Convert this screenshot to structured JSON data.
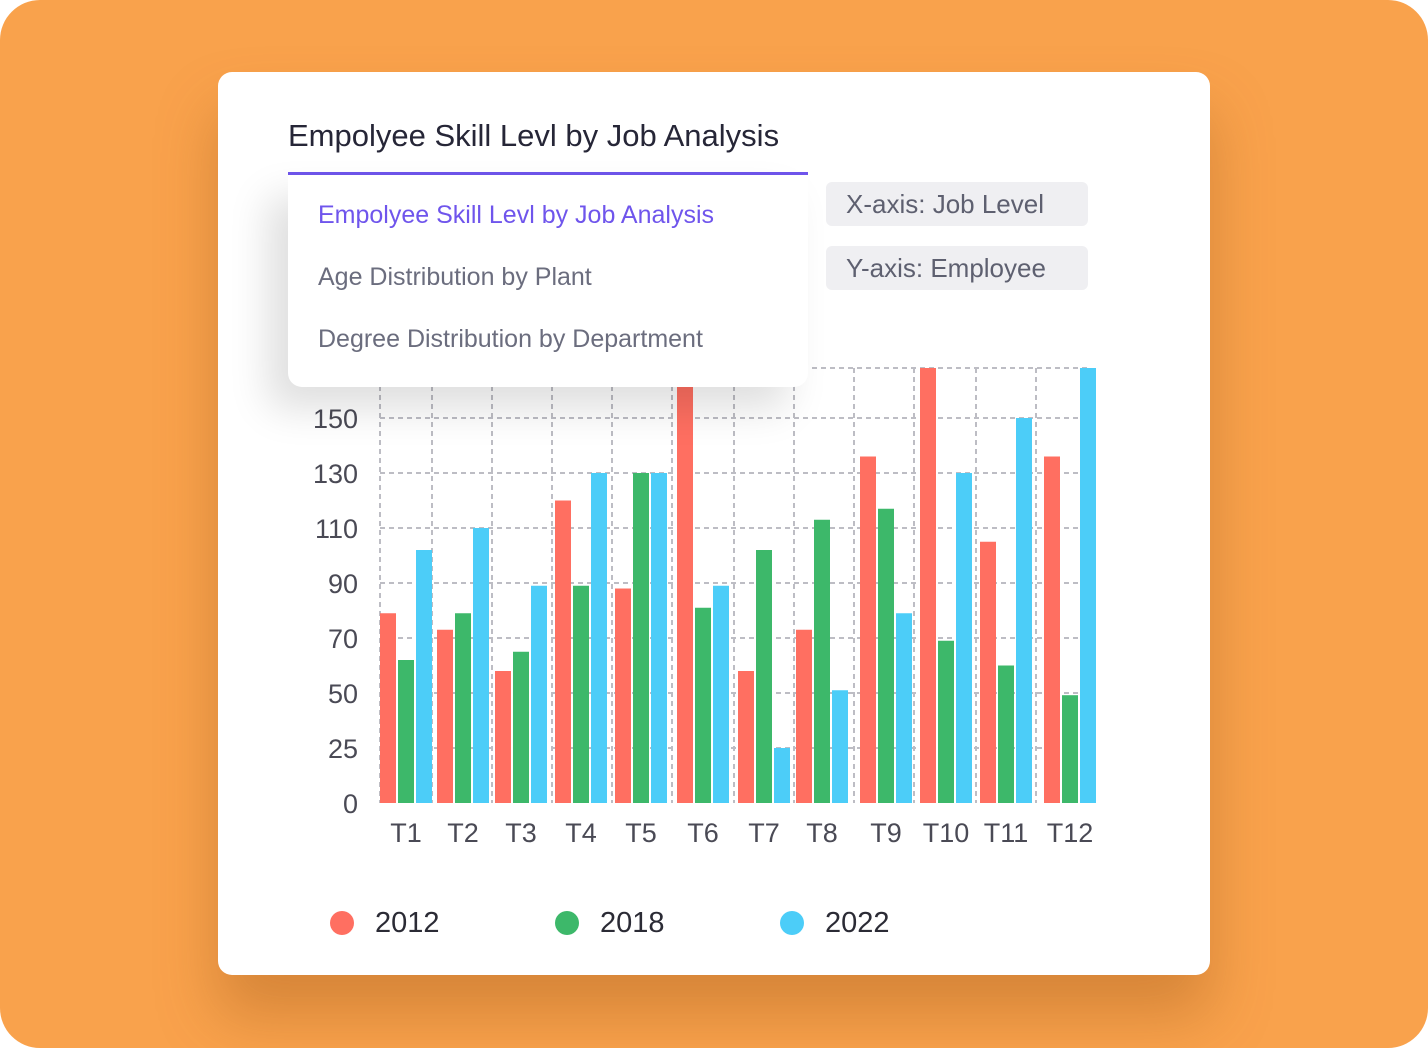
{
  "header": {
    "title": "Empolyee Skill Levl by Job Analysis"
  },
  "dropdown": {
    "items": [
      {
        "label": "Empolyee Skill Levl by Job Analysis",
        "active": true
      },
      {
        "label": "Age Distribution by Plant",
        "active": false
      },
      {
        "label": "Degree Distribution by Department",
        "active": false
      }
    ]
  },
  "axis_chips": {
    "x": {
      "key": "X-axis:",
      "value": "Job Level"
    },
    "y": {
      "key": "Y-axis:",
      "value": "Employee"
    }
  },
  "colors": {
    "accent": "#6F55EC",
    "background": "#F9A24C",
    "s2012": "#FF6F61",
    "s2018": "#3DB86A",
    "s2022": "#4CCDF8"
  },
  "chart_data": {
    "type": "bar",
    "title": "Empolyee Skill Levl by Job Analysis",
    "xlabel": "Job Level",
    "ylabel": "Employee",
    "categories": [
      "T1",
      "T2",
      "T3",
      "T4",
      "T5",
      "T6",
      "T7",
      "T8",
      "T9",
      "T10",
      "T11",
      "T12"
    ],
    "yticks": [
      0,
      25,
      50,
      70,
      90,
      110,
      130,
      150
    ],
    "ylim": [
      0,
      160
    ],
    "grid": true,
    "legend_position": "bottom",
    "series": [
      {
        "name": "2012",
        "color": "#FF6F61",
        "values": [
          79,
          73,
          58,
          120,
          88,
          160,
          58,
          73,
          136,
          160,
          105,
          136
        ]
      },
      {
        "name": "2018",
        "color": "#3DB86A",
        "values": [
          62,
          79,
          65,
          89,
          130,
          81,
          102,
          113,
          117,
          69,
          60,
          49
        ]
      },
      {
        "name": "2022",
        "color": "#4CCDF8",
        "values": [
          102,
          110,
          89,
          130,
          130,
          89,
          25,
          51,
          79,
          130,
          150,
          160
        ]
      }
    ]
  }
}
